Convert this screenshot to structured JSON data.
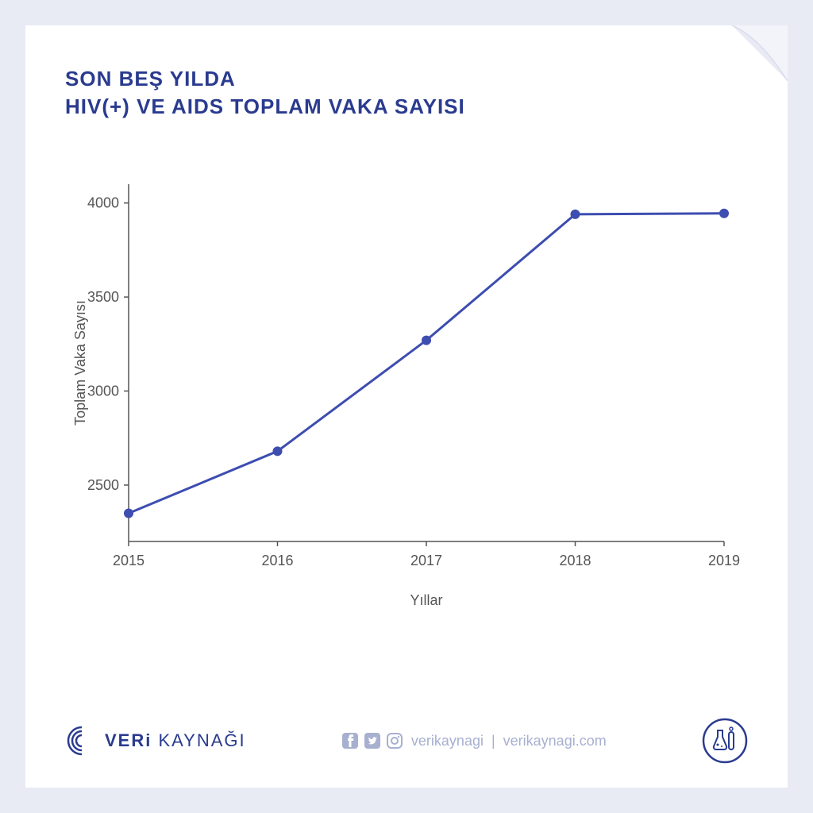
{
  "title": "SON BEŞ YILDA\nHIV(+) VE AIDS TOPLAM VAKA SAYISI",
  "chart": {
    "type": "line",
    "x_values": [
      2015,
      2016,
      2017,
      2018,
      2019
    ],
    "y_values": [
      2350,
      2680,
      3270,
      3940,
      3945
    ],
    "line_color": "#3d4db0",
    "line_width": 3,
    "marker_size": 6,
    "marker_color": "#3d4db0",
    "xlabel": "Yıllar",
    "ylabel": "Toplam Vaka Sayısı",
    "ylim": [
      2200,
      4100
    ],
    "yticks": [
      2500,
      3000,
      3500,
      4000
    ],
    "xticks": [
      2015,
      2016,
      2017,
      2018,
      2019
    ],
    "axis_color": "#555555",
    "tick_fontsize": 18,
    "label_fontsize": 18,
    "tick_color": "#555555",
    "label_color": "#555555",
    "background_color": "#ffffff"
  },
  "footer": {
    "brand_bold": "VERi",
    "brand_rest": " KAYNAĞI",
    "social_handle": "verikaynagi",
    "website": "verikaynagi.com"
  },
  "colors": {
    "page_bg": "#e8eaf4",
    "card_bg": "#ffffff",
    "title_color": "#2a3b8f",
    "footer_muted": "#a8b0d0",
    "brand_color": "#2a3b8f",
    "curl_shadow": "#d0d4e6"
  }
}
